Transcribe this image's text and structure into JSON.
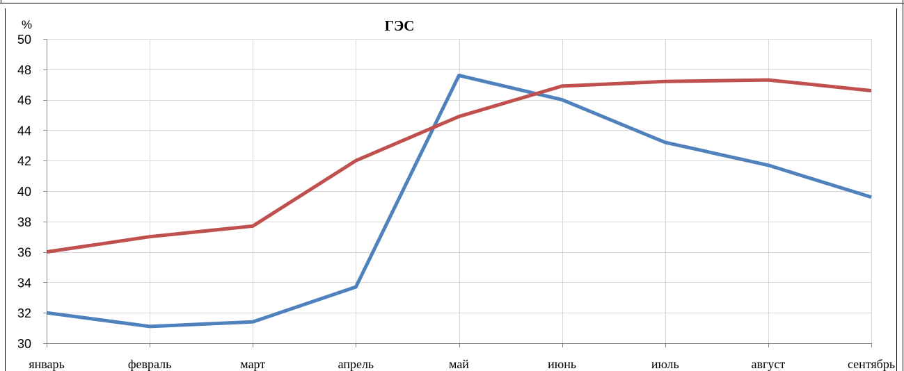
{
  "chart_data": {
    "type": "line",
    "title": "ГЭС",
    "ylabel": "%",
    "xlabel": "",
    "categories": [
      "январь",
      "февраль",
      "март",
      "апрель",
      "май",
      "июнь",
      "июль",
      "август",
      "сентябрь"
    ],
    "ylim": [
      30,
      50
    ],
    "yticks": [
      30,
      32,
      34,
      36,
      38,
      40,
      42,
      44,
      46,
      48,
      50
    ],
    "grid": true,
    "series": [
      {
        "color": "#4f81bd",
        "values": [
          32.0,
          31.1,
          31.4,
          33.7,
          47.6,
          46.0,
          43.2,
          41.7,
          39.6
        ]
      },
      {
        "color": "#c0504d",
        "values": [
          36.0,
          37.0,
          37.7,
          42.0,
          44.9,
          46.9,
          47.2,
          47.3,
          46.6
        ]
      }
    ]
  }
}
